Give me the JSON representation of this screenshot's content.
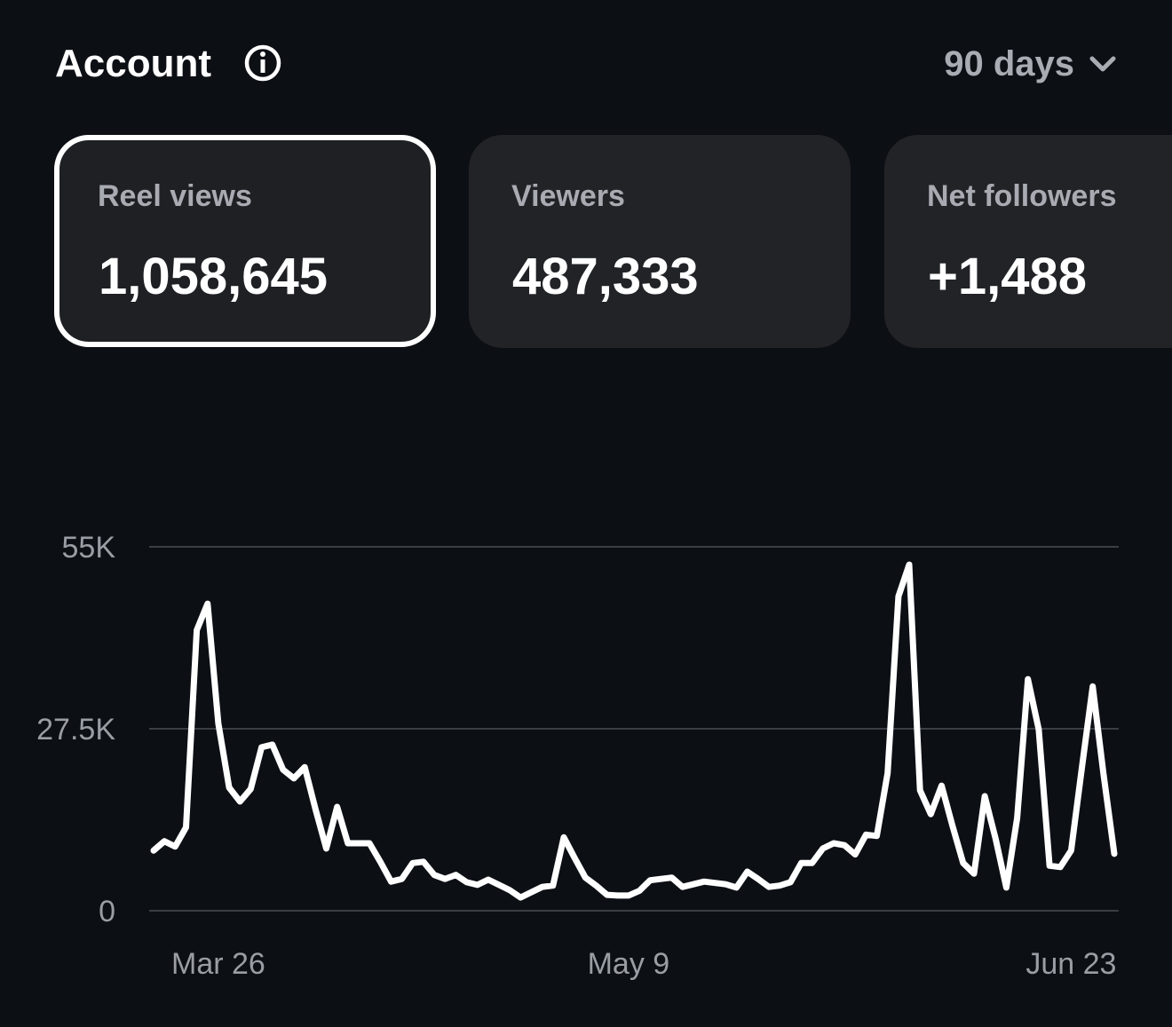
{
  "header": {
    "title": "Account",
    "period": "90 days"
  },
  "cards": [
    {
      "label": "Reel views",
      "value": "1,058,645",
      "selected": true
    },
    {
      "label": "Viewers",
      "value": "487,333"
    },
    {
      "label": "Net followers",
      "value": "+1,488"
    }
  ],
  "chart_data": {
    "type": "line",
    "categories": [
      null,
      null,
      null,
      null,
      null,
      null,
      "Mar 26",
      null,
      null,
      null,
      null,
      null,
      null,
      null,
      null,
      null,
      null,
      null,
      null,
      null,
      null,
      null,
      null,
      null,
      null,
      null,
      null,
      null,
      null,
      null,
      null,
      null,
      null,
      null,
      null,
      null,
      null,
      null,
      null,
      null,
      null,
      null,
      null,
      null,
      "May 9",
      null,
      null,
      null,
      null,
      null,
      null,
      null,
      null,
      null,
      null,
      null,
      null,
      null,
      null,
      null,
      null,
      null,
      null,
      null,
      null,
      null,
      null,
      null,
      null,
      null,
      null,
      null,
      null,
      null,
      null,
      null,
      null,
      null,
      null,
      null,
      null,
      null,
      null,
      null,
      null,
      "Jun 23",
      null,
      null,
      null,
      null
    ],
    "series": [
      {
        "color": "#ffffff",
        "values": [
          9100,
          10500,
          9700,
          12600,
          42400,
          46400,
          28300,
          18600,
          16500,
          18400,
          24700,
          25100,
          21300,
          20000,
          21700,
          15300,
          9400,
          15700,
          10200,
          10200,
          10200,
          7400,
          4400,
          4800,
          7200,
          7400,
          5400,
          4800,
          5400,
          4300,
          3900,
          4700,
          3900,
          3100,
          2000,
          2800,
          3600,
          3800,
          11100,
          8000,
          5000,
          3800,
          2400,
          2300,
          2300,
          3000,
          4600,
          4800,
          5000,
          3600,
          4000,
          4400,
          4200,
          4000,
          3500,
          5900,
          4800,
          3600,
          3800,
          4300,
          7200,
          7200,
          9400,
          10200,
          9900,
          8500,
          11500,
          11300,
          20800,
          47500,
          52300,
          18200,
          14600,
          18900,
          12900,
          7200,
          5600,
          17300,
          10900,
          3500,
          14000,
          35000,
          27400,
          6800,
          6600,
          9100,
          21600,
          33900,
          20700,
          8600
        ]
      }
    ],
    "ylim": [
      0,
      55000
    ],
    "yticks": [
      0,
      {
        "value": 27500,
        "label": "27.5K"
      },
      {
        "value": 55000,
        "label": "55K"
      }
    ],
    "grid": true
  }
}
